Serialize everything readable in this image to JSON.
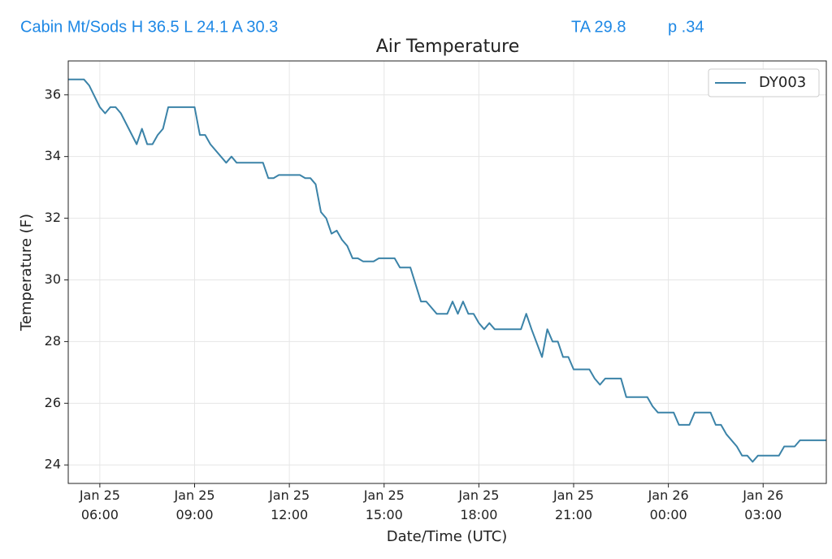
{
  "header": {
    "station": "Cabin Mt/Sods H 36.5 L 24.1 A 30.3",
    "ta": "TA 29.8",
    "p": "p .34"
  },
  "chart_data": {
    "type": "line",
    "title": "Air Temperature",
    "x_label": "Date/Time (UTC)",
    "y_label": "Temperature (F)",
    "x": [
      "Jan 25 05:00",
      "Jan 25 05:30",
      "Jan 25 05:40",
      "Jan 25 06:00",
      "Jan 25 06:10",
      "Jan 25 06:20",
      "Jan 25 06:30",
      "Jan 25 06:40",
      "Jan 25 07:10",
      "Jan 25 07:20",
      "Jan 25 07:30",
      "Jan 25 07:40",
      "Jan 25 07:50",
      "Jan 25 08:00",
      "Jan 25 08:10",
      "Jan 25 09:00",
      "Jan 25 09:10",
      "Jan 25 09:20",
      "Jan 25 09:30",
      "Jan 25 10:00",
      "Jan 25 10:10",
      "Jan 25 10:20",
      "Jan 25 11:10",
      "Jan 25 11:20",
      "Jan 25 11:30",
      "Jan 25 11:40",
      "Jan 25 12:20",
      "Jan 25 12:30",
      "Jan 25 12:40",
      "Jan 25 12:50",
      "Jan 25 13:00",
      "Jan 25 13:10",
      "Jan 25 13:20",
      "Jan 25 13:30",
      "Jan 25 13:40",
      "Jan 25 13:50",
      "Jan 25 14:00",
      "Jan 25 14:10",
      "Jan 25 14:20",
      "Jan 25 14:40",
      "Jan 25 14:50",
      "Jan 25 15:20",
      "Jan 25 15:30",
      "Jan 25 15:50",
      "Jan 25 16:10",
      "Jan 25 16:20",
      "Jan 25 16:40",
      "Jan 25 17:00",
      "Jan 25 17:10",
      "Jan 25 17:20",
      "Jan 25 17:30",
      "Jan 25 17:40",
      "Jan 25 17:50",
      "Jan 25 18:00",
      "Jan 25 18:10",
      "Jan 25 18:20",
      "Jan 25 18:30",
      "Jan 25 19:20",
      "Jan 25 19:30",
      "Jan 25 19:40",
      "Jan 25 20:00",
      "Jan 25 20:10",
      "Jan 25 20:20",
      "Jan 25 20:30",
      "Jan 25 20:40",
      "Jan 25 20:50",
      "Jan 25 21:00",
      "Jan 25 21:30",
      "Jan 25 21:40",
      "Jan 25 21:50",
      "Jan 25 22:00",
      "Jan 25 22:30",
      "Jan 25 22:40",
      "Jan 25 23:20",
      "Jan 25 23:30",
      "Jan 25 23:40",
      "Jan 26 00:10",
      "Jan 26 00:20",
      "Jan 26 00:40",
      "Jan 26 00:50",
      "Jan 26 01:20",
      "Jan 26 01:30",
      "Jan 26 01:40",
      "Jan 26 01:50",
      "Jan 26 02:10",
      "Jan 26 02:20",
      "Jan 26 02:30",
      "Jan 26 02:40",
      "Jan 26 02:50",
      "Jan 26 03:30",
      "Jan 26 03:40",
      "Jan 26 04:00",
      "Jan 26 04:10",
      "Jan 26 05:00"
    ],
    "series": [
      {
        "name": "DY003",
        "color": "#3b83a8",
        "values": [
          36.5,
          36.5,
          36.3,
          35.6,
          35.4,
          35.6,
          35.6,
          35.4,
          34.4,
          34.9,
          34.4,
          34.4,
          34.7,
          34.9,
          35.6,
          35.6,
          34.7,
          34.7,
          34.4,
          33.8,
          34.0,
          33.8,
          33.8,
          33.3,
          33.3,
          33.4,
          33.4,
          33.3,
          33.3,
          33.1,
          32.2,
          32.0,
          31.5,
          31.6,
          31.3,
          31.1,
          30.7,
          30.7,
          30.6,
          30.6,
          30.7,
          30.7,
          30.4,
          30.4,
          29.3,
          29.3,
          28.9,
          28.9,
          29.3,
          28.9,
          29.3,
          28.9,
          28.9,
          28.6,
          28.4,
          28.6,
          28.4,
          28.4,
          28.9,
          28.4,
          27.5,
          28.4,
          28.0,
          28.0,
          27.5,
          27.5,
          27.1,
          27.1,
          26.8,
          26.6,
          26.8,
          26.8,
          26.2,
          26.2,
          25.9,
          25.7,
          25.7,
          25.3,
          25.3,
          25.7,
          25.7,
          25.3,
          25.3,
          25.0,
          24.6,
          24.3,
          24.3,
          24.1,
          24.3,
          24.3,
          24.6,
          24.6,
          24.8,
          24.8
        ]
      }
    ],
    "xlim": [
      "Jan 25 05:00",
      "Jan 26 05:00"
    ],
    "xticks": [
      {
        "value": "Jan 25 06:00",
        "label": "Jan 25\n06:00"
      },
      {
        "value": "Jan 25 09:00",
        "label": "Jan 25\n09:00"
      },
      {
        "value": "Jan 25 12:00",
        "label": "Jan 25\n12:00"
      },
      {
        "value": "Jan 25 15:00",
        "label": "Jan 25\n15:00"
      },
      {
        "value": "Jan 25 18:00",
        "label": "Jan 25\n18:00"
      },
      {
        "value": "Jan 25 21:00",
        "label": "Jan 25\n21:00"
      },
      {
        "value": "Jan 26 00:00",
        "label": "Jan 26\n00:00"
      },
      {
        "value": "Jan 26 03:00",
        "label": "Jan 26\n03:00"
      }
    ],
    "ylim": [
      23.4,
      37.1
    ],
    "yticks": [
      24,
      26,
      28,
      30,
      32,
      34,
      36
    ],
    "grid": true,
    "legend": "upper right"
  }
}
